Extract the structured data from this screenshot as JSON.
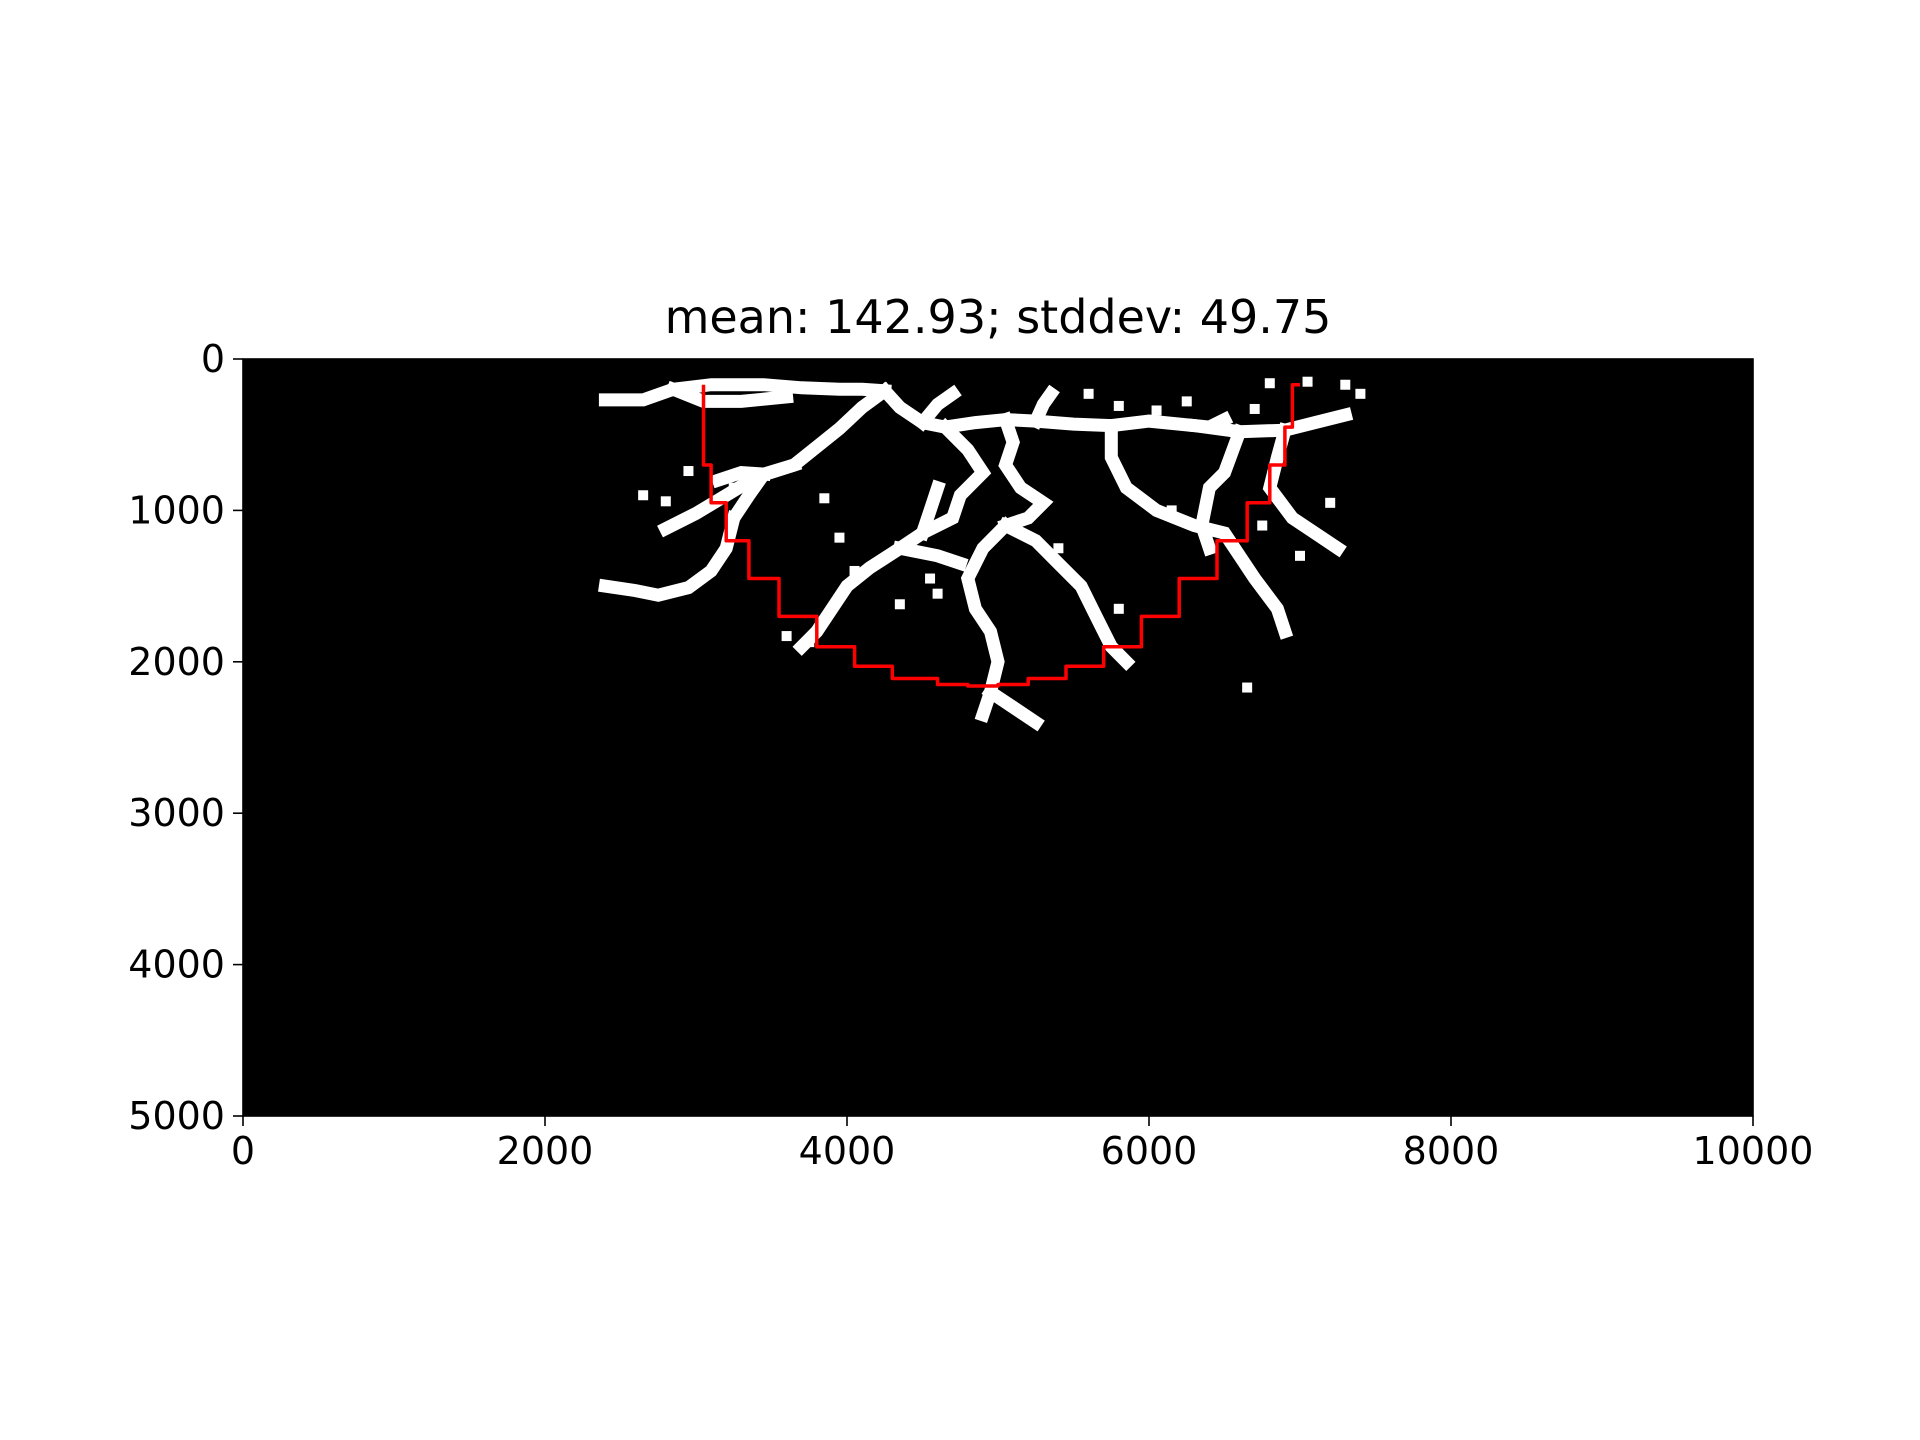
{
  "chart_data": {
    "type": "heatmap",
    "title": "mean: 142.93; stddev: 49.75",
    "xlabel": "",
    "ylabel": "",
    "xlim": [
      0,
      10000
    ],
    "ylim": [
      5000,
      0
    ],
    "y_axis_inverted": true,
    "grid": false,
    "background_color": "#000000",
    "foreground_color": "#ffffff",
    "curve_color": "#ff0000",
    "xticks": [
      0,
      2000,
      4000,
      6000,
      8000,
      10000
    ],
    "xtick_labels": [
      "0",
      "2000",
      "4000",
      "6000",
      "8000",
      "10000"
    ],
    "yticks": [
      0,
      1000,
      2000,
      3000,
      4000,
      5000
    ],
    "ytick_labels": [
      "0",
      "1000",
      "2000",
      "3000",
      "4000",
      "5000"
    ],
    "root_segments": [
      [
        [
          2400,
          270
        ],
        [
          2650,
          270
        ],
        [
          2850,
          200
        ],
        [
          3100,
          170
        ],
        [
          3450,
          170
        ],
        [
          3700,
          190
        ],
        [
          3950,
          200
        ],
        [
          4100,
          200
        ],
        [
          4250,
          210
        ]
      ],
      [
        [
          4250,
          210
        ],
        [
          4350,
          320
        ],
        [
          4500,
          420
        ],
        [
          4650,
          450
        ],
        [
          4850,
          420
        ],
        [
          5050,
          400
        ],
        [
          5250,
          410
        ],
        [
          5500,
          430
        ],
        [
          5750,
          440
        ]
      ],
      [
        [
          5750,
          440
        ],
        [
          6000,
          410
        ],
        [
          6300,
          440
        ],
        [
          6600,
          480
        ],
        [
          6900,
          470
        ],
        [
          7100,
          420
        ],
        [
          7300,
          370
        ]
      ],
      [
        [
          2850,
          200
        ],
        [
          3050,
          280
        ],
        [
          3300,
          280
        ],
        [
          3600,
          250
        ]
      ],
      [
        [
          4250,
          210
        ],
        [
          4100,
          320
        ],
        [
          3950,
          460
        ],
        [
          3800,
          580
        ],
        [
          3650,
          700
        ],
        [
          3450,
          760
        ],
        [
          3350,
          900
        ],
        [
          3250,
          1050
        ]
      ],
      [
        [
          3650,
          700
        ],
        [
          3400,
          780
        ],
        [
          3200,
          900
        ],
        [
          3000,
          1020
        ],
        [
          2800,
          1120
        ]
      ],
      [
        [
          3250,
          1050
        ],
        [
          3200,
          1250
        ],
        [
          3100,
          1400
        ],
        [
          2950,
          1510
        ],
        [
          2750,
          1560
        ],
        [
          2600,
          1530
        ],
        [
          2400,
          1500
        ]
      ],
      [
        [
          3450,
          760
        ],
        [
          3300,
          750
        ],
        [
          3150,
          800
        ]
      ],
      [
        [
          4650,
          450
        ],
        [
          4800,
          600
        ],
        [
          4900,
          750
        ],
        [
          4750,
          900
        ],
        [
          4700,
          1050
        ],
        [
          4500,
          1150
        ],
        [
          4350,
          1250
        ],
        [
          4150,
          1380
        ],
        [
          4000,
          1500
        ],
        [
          3900,
          1650
        ],
        [
          3800,
          1800
        ],
        [
          3700,
          1900
        ]
      ],
      [
        [
          5050,
          400
        ],
        [
          5100,
          550
        ],
        [
          5050,
          700
        ],
        [
          5150,
          850
        ],
        [
          5300,
          950
        ],
        [
          5200,
          1050
        ],
        [
          5050,
          1100
        ]
      ],
      [
        [
          5050,
          1100
        ],
        [
          5250,
          1200
        ],
        [
          5400,
          1350
        ],
        [
          5550,
          1500
        ],
        [
          5650,
          1700
        ],
        [
          5750,
          1900
        ],
        [
          5850,
          2000
        ]
      ],
      [
        [
          5050,
          1100
        ],
        [
          4900,
          1250
        ],
        [
          4800,
          1450
        ],
        [
          4850,
          1650
        ],
        [
          4950,
          1800
        ],
        [
          5000,
          2000
        ],
        [
          4950,
          2200
        ],
        [
          4900,
          2350
        ]
      ],
      [
        [
          4950,
          2200
        ],
        [
          5100,
          2300
        ],
        [
          5250,
          2400
        ]
      ],
      [
        [
          5750,
          440
        ],
        [
          5750,
          650
        ],
        [
          5850,
          850
        ],
        [
          6050,
          1000
        ],
        [
          6300,
          1100
        ],
        [
          6500,
          1150
        ],
        [
          6600,
          1300
        ],
        [
          6700,
          1450
        ],
        [
          6850,
          1650
        ],
        [
          6900,
          1800
        ]
      ],
      [
        [
          6300,
          440
        ],
        [
          6400,
          450
        ],
        [
          6500,
          400
        ]
      ],
      [
        [
          6600,
          480
        ],
        [
          6500,
          750
        ],
        [
          6400,
          850
        ],
        [
          6350,
          1100
        ],
        [
          6400,
          1250
        ]
      ],
      [
        [
          6900,
          470
        ],
        [
          6850,
          650
        ],
        [
          6800,
          850
        ],
        [
          6950,
          1050
        ],
        [
          7100,
          1150
        ],
        [
          7250,
          1250
        ]
      ],
      [
        [
          4500,
          420
        ],
        [
          4600,
          300
        ],
        [
          4700,
          230
        ]
      ],
      [
        [
          5250,
          410
        ],
        [
          5300,
          300
        ],
        [
          5350,
          230
        ]
      ],
      [
        [
          4350,
          1250
        ],
        [
          4600,
          1300
        ],
        [
          4750,
          1350
        ]
      ],
      [
        [
          4500,
          1150
        ],
        [
          4550,
          1000
        ],
        [
          4600,
          850
        ]
      ]
    ],
    "root_specks": [
      [
        5600,
        230
      ],
      [
        5800,
        310
      ],
      [
        6050,
        340
      ],
      [
        6250,
        280
      ],
      [
        6800,
        160
      ],
      [
        6700,
        330
      ],
      [
        7050,
        150
      ],
      [
        7300,
        170
      ],
      [
        7400,
        230
      ],
      [
        2950,
        740
      ],
      [
        3250,
        850
      ],
      [
        3850,
        920
      ],
      [
        3950,
        1180
      ],
      [
        4050,
        1400
      ],
      [
        4350,
        1620
      ],
      [
        4550,
        1450
      ],
      [
        4600,
        1550
      ],
      [
        5400,
        1250
      ],
      [
        5800,
        1650
      ],
      [
        6150,
        1000
      ],
      [
        6750,
        1100
      ],
      [
        7000,
        1300
      ],
      [
        7200,
        950
      ],
      [
        6650,
        2170
      ],
      [
        3600,
        1830
      ],
      [
        3750,
        1870
      ],
      [
        2650,
        900
      ],
      [
        2800,
        940
      ]
    ],
    "curve": [
      [
        3050,
        170
      ],
      [
        3050,
        450
      ],
      [
        3100,
        700
      ],
      [
        3200,
        950
      ],
      [
        3350,
        1200
      ],
      [
        3550,
        1450
      ],
      [
        3800,
        1700
      ],
      [
        4050,
        1900
      ],
      [
        4300,
        2030
      ],
      [
        4600,
        2110
      ],
      [
        4800,
        2150
      ],
      [
        5000,
        2160
      ],
      [
        5200,
        2150
      ],
      [
        5450,
        2110
      ],
      [
        5700,
        2030
      ],
      [
        5950,
        1900
      ],
      [
        6200,
        1700
      ],
      [
        6450,
        1450
      ],
      [
        6650,
        1200
      ],
      [
        6800,
        950
      ],
      [
        6900,
        700
      ],
      [
        6950,
        450
      ],
      [
        7000,
        170
      ]
    ]
  }
}
